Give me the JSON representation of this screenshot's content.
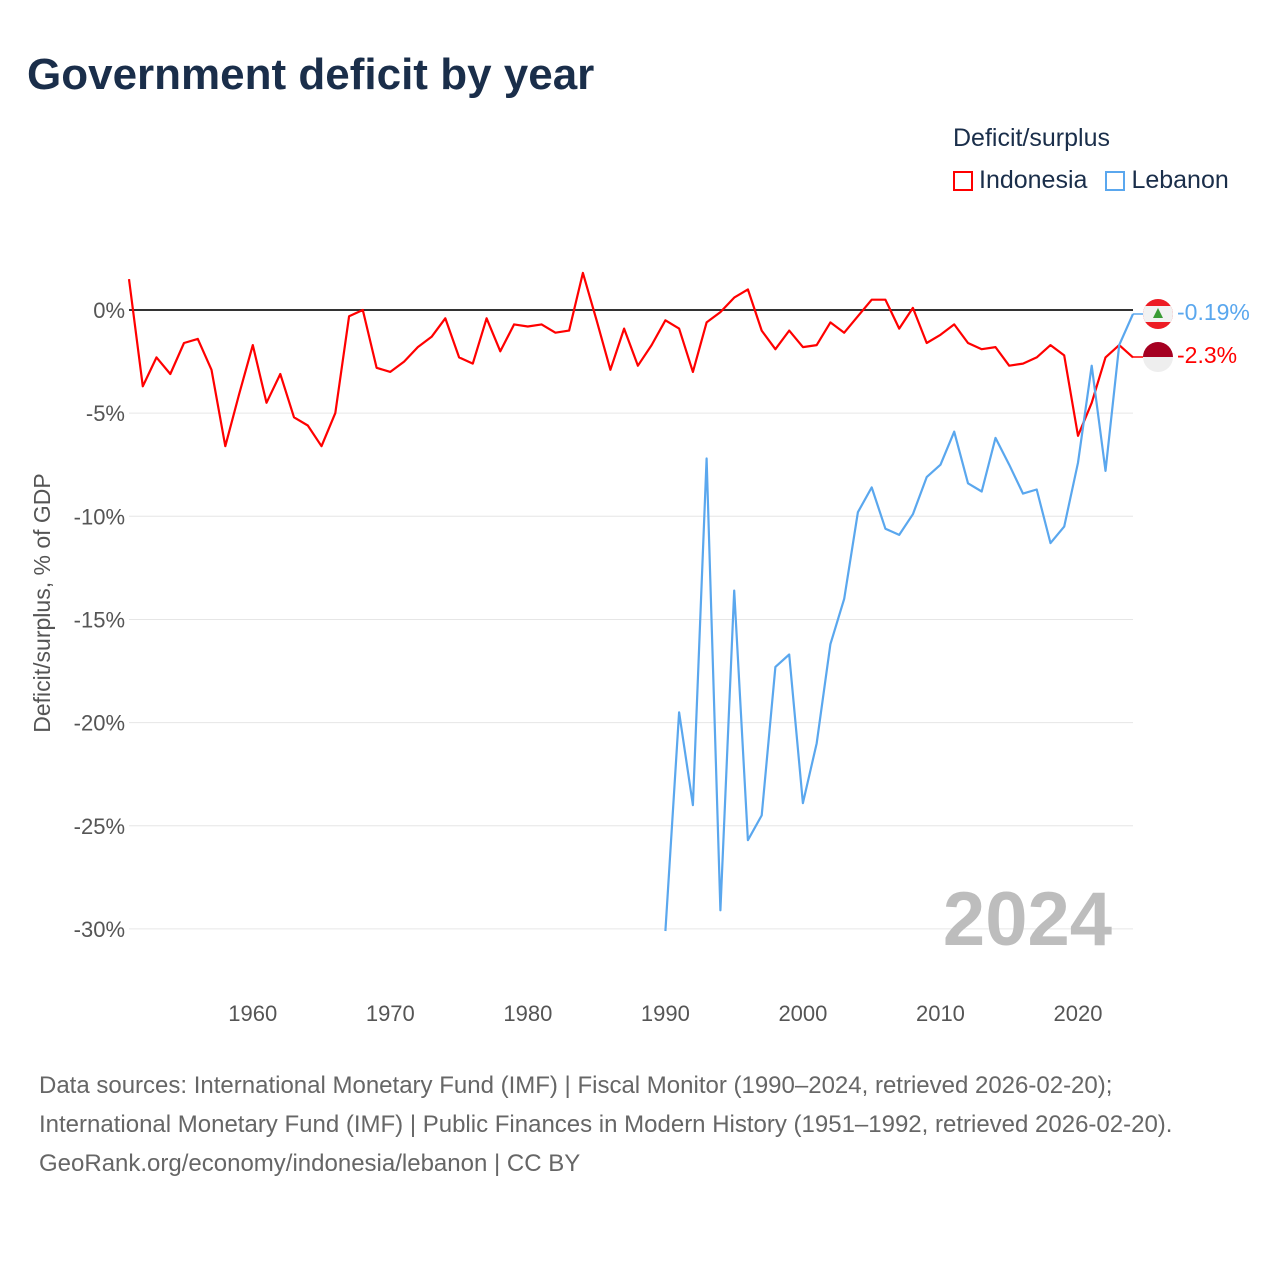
{
  "title": "Government deficit by year",
  "legend": {
    "title": "Deficit/surplus",
    "items": [
      {
        "label": "Indonesia",
        "color": "#ff0000"
      },
      {
        "label": "Lebanon",
        "color": "#5aa7ee"
      }
    ]
  },
  "year_watermark": "2024",
  "end_labels": {
    "lebanon": "-0.19%",
    "indonesia": "-2.3%"
  },
  "footer": {
    "sources": "Data sources: International Monetary Fund (IMF) | Fiscal Monitor (1990–2024, retrieved 2026-02-20); International Monetary Fund (IMF) | Public Finances in Modern History (1951–1992, retrieved 2026-02-20).",
    "credit": "GeoRank.org/economy/indonesia/lebanon | CC BY"
  },
  "chart_data": {
    "type": "line",
    "title": "Government deficit by year",
    "xlabel": "",
    "ylabel": "Deficit/surplus, % of GDP",
    "xlim": [
      1951,
      2024
    ],
    "ylim": [
      -32,
      2.5
    ],
    "x_ticks": [
      1960,
      1970,
      1980,
      1990,
      2000,
      2010,
      2020
    ],
    "y_ticks": [
      0,
      -5,
      -10,
      -15,
      -20,
      -25,
      -30
    ],
    "y_tick_labels": [
      "0%",
      "-5%",
      "-10%",
      "-15%",
      "-20%",
      "-25%",
      "-30%"
    ],
    "legend_position": "top-right",
    "series": [
      {
        "name": "Indonesia",
        "color": "#ff0000",
        "start_year": 1951,
        "values": [
          1.5,
          -3.7,
          -2.3,
          -3.1,
          -1.6,
          -1.4,
          -2.9,
          -6.6,
          -4.1,
          -1.7,
          -4.5,
          -3.1,
          -5.2,
          -5.6,
          -6.6,
          -5.0,
          -0.3,
          0.0,
          -2.8,
          -3.0,
          -2.5,
          -1.8,
          -1.3,
          -0.4,
          -2.3,
          -2.6,
          -0.4,
          -2.0,
          -0.7,
          -0.8,
          -0.7,
          -1.1,
          -1.0,
          1.8,
          -0.5,
          -2.9,
          -0.9,
          -2.7,
          -1.7,
          -0.5,
          -0.9,
          -3.0,
          -0.6,
          -0.1,
          0.6,
          1.0,
          -1.0,
          -1.9,
          -1.0,
          -1.8,
          -1.7,
          -0.6,
          -1.1,
          -0.3,
          0.5,
          0.5,
          -0.9,
          0.1,
          -1.6,
          -1.2,
          -0.7,
          -1.6,
          -1.9,
          -1.8,
          -2.7,
          -2.6,
          -2.3,
          -1.7,
          -2.2,
          -6.1,
          -4.5,
          -2.3,
          -1.7,
          -2.3
        ]
      },
      {
        "name": "Lebanon",
        "color": "#5aa7ee",
        "start_year": 1990,
        "values": [
          -30.1,
          -19.5,
          -24.0,
          -7.2,
          -29.1,
          -13.6,
          -25.7,
          -24.5,
          -17.3,
          -16.7,
          -23.9,
          -21.0,
          -16.2,
          -14.0,
          -9.8,
          -8.6,
          -10.6,
          -10.9,
          -9.9,
          -8.1,
          -7.5,
          -5.9,
          -8.4,
          -8.8,
          -6.2,
          -7.5,
          -8.9,
          -8.7,
          -11.3,
          -10.5,
          -7.4,
          -2.7,
          -7.8,
          -1.7,
          -0.19
        ]
      }
    ]
  }
}
